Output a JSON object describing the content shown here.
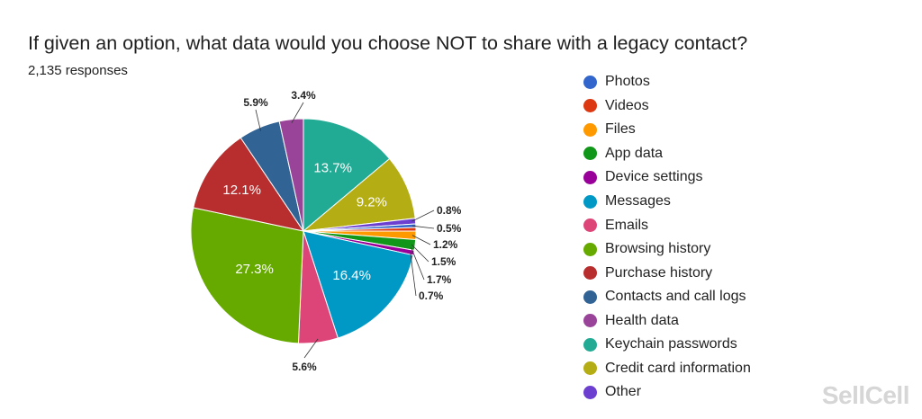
{
  "title": "If given an option, what data would you choose NOT to share with a legacy contact?",
  "subtitle": "2,135 responses",
  "watermark": "SellCell",
  "chart_data": {
    "type": "pie",
    "title": "If given an option, what data would you choose NOT to share with a legacy contact?",
    "legend_position": "right",
    "start": "top",
    "direction": "clockwise",
    "slices": [
      {
        "label": "Keychain passwords",
        "value": 13.7,
        "display": "13.7%",
        "color": "#22ab94"
      },
      {
        "label": "Credit card information",
        "value": 9.2,
        "display": "9.2%",
        "color": "#b4ad13"
      },
      {
        "label": "Other",
        "value": 0.8,
        "display": "0.8%",
        "color": "#6c3fd1"
      },
      {
        "label": "Photos",
        "value": 0.5,
        "display": "0.5%",
        "color": "#3366cc"
      },
      {
        "label": "Videos",
        "value": 0.5,
        "display": "",
        "color": "#dc3912"
      },
      {
        "label": "Files",
        "value": 1.2,
        "display": "1.2%",
        "color": "#ff9900"
      },
      {
        "label": "App data",
        "value": 1.5,
        "display": "1.5%",
        "color": "#109618"
      },
      {
        "label": "Device settings",
        "value": 0.7,
        "display": "0.7%",
        "color": "#990099"
      },
      {
        "label": "Messages",
        "value": 16.4,
        "display": "16.4%",
        "color": "#0099c6"
      },
      {
        "label": "Emails",
        "value": 5.6,
        "display": "5.6%",
        "color": "#dd4477"
      },
      {
        "label": "Browsing history",
        "value": 27.3,
        "display": "27.3%",
        "color": "#66aa00"
      },
      {
        "label": "Purchase history",
        "value": 12.1,
        "display": "12.1%",
        "color": "#b82e2e"
      },
      {
        "label": "Contacts and call logs",
        "value": 5.9,
        "display": "5.9%",
        "color": "#316395"
      },
      {
        "label": "Health data",
        "value": 3.4,
        "display": "3.4%",
        "color": "#994499"
      }
    ],
    "callout_labels": [
      {
        "text": "1.7%"
      }
    ],
    "legend": [
      {
        "label": "Photos",
        "color": "#3366cc"
      },
      {
        "label": "Videos",
        "color": "#dc3912"
      },
      {
        "label": "Files",
        "color": "#ff9900"
      },
      {
        "label": "App data",
        "color": "#109618"
      },
      {
        "label": "Device settings",
        "color": "#990099"
      },
      {
        "label": "Messages",
        "color": "#0099c6"
      },
      {
        "label": "Emails",
        "color": "#dd4477"
      },
      {
        "label": "Browsing history",
        "color": "#66aa00"
      },
      {
        "label": "Purchase history",
        "color": "#b82e2e"
      },
      {
        "label": "Contacts and call logs",
        "color": "#316395"
      },
      {
        "label": "Health data",
        "color": "#994499"
      },
      {
        "label": "Keychain passwords",
        "color": "#22ab94"
      },
      {
        "label": "Credit card information",
        "color": "#b4ad13"
      },
      {
        "label": "Other",
        "color": "#6c3fd1"
      }
    ]
  }
}
